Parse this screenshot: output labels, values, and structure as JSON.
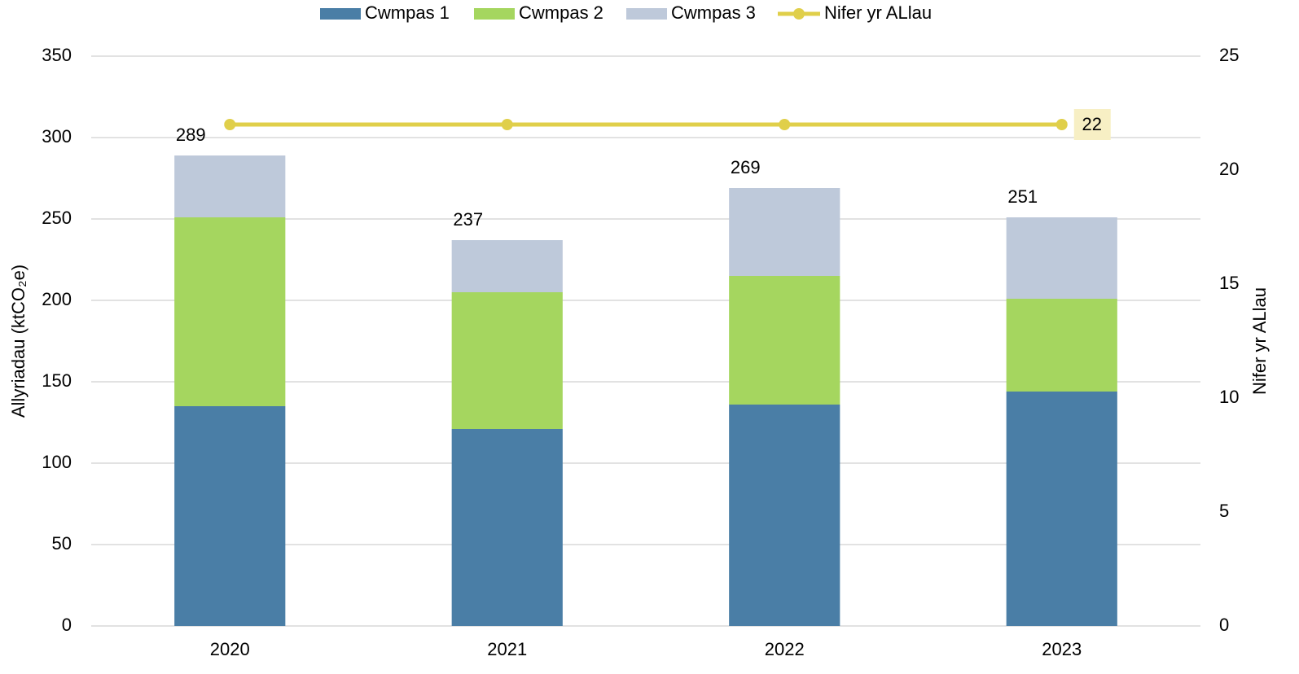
{
  "chart_data": {
    "type": "bar",
    "stacked": true,
    "categories": [
      "2020",
      "2021",
      "2022",
      "2023"
    ],
    "series": [
      {
        "name": "Cwmpas 1",
        "color": "#4a7ea6",
        "values": [
          135,
          121,
          136,
          144
        ]
      },
      {
        "name": "Cwmpas 2",
        "color": "#a5d65f",
        "values": [
          116,
          84,
          79,
          57
        ]
      },
      {
        "name": "Cwmpas 3",
        "color": "#bec9da",
        "values": [
          38,
          32,
          54,
          50
        ]
      },
      {
        "name": "Nifer yr ALlau",
        "type": "line",
        "axis": "y2",
        "color": "#e0cf4a",
        "values": [
          22,
          22,
          22,
          22
        ],
        "value_labels": [
          null,
          null,
          null,
          "22"
        ]
      }
    ],
    "totals": [
      289,
      237,
      269,
      251
    ],
    "ylabel": "Allyriadau (ktCO₂e)",
    "y2label": "Nifer yr ALlau",
    "ylim": [
      0,
      350
    ],
    "yticks": [
      0,
      50,
      100,
      150,
      200,
      250,
      300,
      350
    ],
    "y2lim": [
      0,
      25
    ],
    "y2ticks": [
      0,
      5,
      10,
      15,
      20,
      25
    ],
    "grid": true,
    "legend": "top"
  }
}
